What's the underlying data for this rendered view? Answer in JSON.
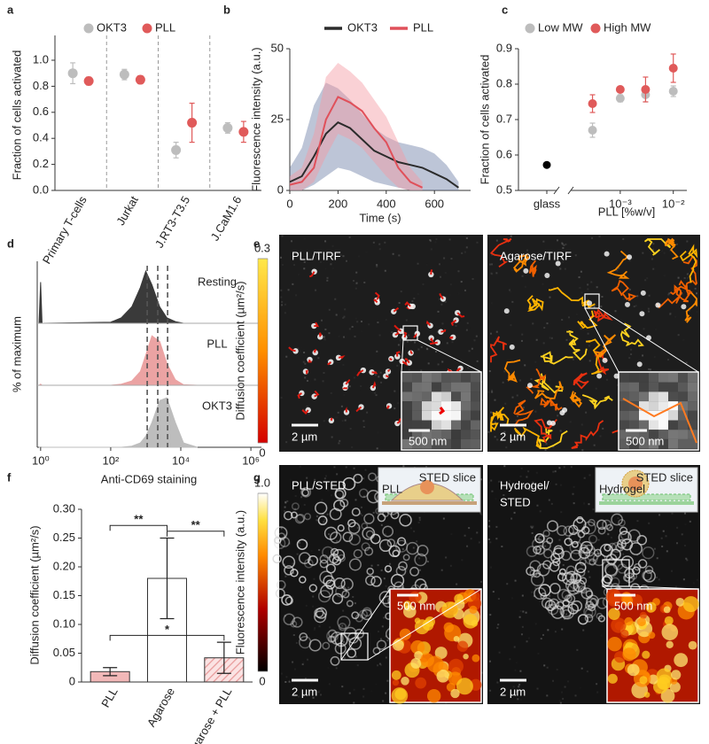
{
  "chart_data": [
    {
      "panel": "a",
      "type": "dot",
      "ylabel": "Fraction of cells activated",
      "categories": [
        "Primary T-cells",
        "Jurkat",
        "J.RT3-T3.5",
        "J.CaM1.6"
      ],
      "series": [
        {
          "name": "OKT3",
          "color": "#bdbdbd",
          "values": [
            0.9,
            0.89,
            0.31,
            0.48
          ],
          "errors": [
            0.08,
            0.04,
            0.06,
            0.04
          ]
        },
        {
          "name": "PLL",
          "color": "#e05a5a",
          "values": [
            0.84,
            0.85,
            0.52,
            0.45
          ],
          "errors": [
            0.03,
            0.03,
            0.15,
            0.08
          ]
        }
      ],
      "ylim": [
        0,
        1.0
      ],
      "yticks": [
        {
          "value": 0,
          "label": "0.0"
        },
        0.2,
        0.4,
        0.6,
        0.8,
        {
          "value": 1,
          "label": "1.0"
        }
      ]
    },
    {
      "panel": "b",
      "type": "line",
      "xlabel": "Time (s)",
      "ylabel": "Fluorescence intensity (a.u.)",
      "x": [
        0,
        50,
        100,
        150,
        200,
        250,
        300,
        350,
        400,
        450,
        500,
        550,
        600,
        650,
        700
      ],
      "series": [
        {
          "name": "OKT3",
          "color": "#2b2b2b",
          "band_color": "#6d7fa6",
          "values": [
            3,
            5,
            12,
            20,
            24,
            22,
            18,
            14,
            12,
            10,
            9,
            8,
            6,
            4,
            1
          ],
          "lower": [
            0,
            0,
            2,
            5,
            8,
            7,
            5,
            3,
            2,
            1,
            0,
            0,
            0,
            0,
            0
          ],
          "upper": [
            8,
            15,
            30,
            38,
            36,
            32,
            27,
            22,
            19,
            17,
            16,
            15,
            13,
            9,
            3
          ]
        },
        {
          "name": "PLL",
          "color": "#e0505a",
          "band_color": "#f39aa2",
          "values": [
            2,
            3,
            8,
            25,
            33,
            31,
            28,
            22,
            17,
            8,
            3,
            1,
            null,
            null,
            null
          ],
          "lower": [
            0,
            0,
            3,
            12,
            20,
            18,
            15,
            10,
            5,
            1,
            0,
            0,
            null,
            null,
            null
          ],
          "upper": [
            5,
            8,
            20,
            40,
            45,
            42,
            38,
            32,
            26,
            17,
            8,
            3,
            null,
            null,
            null
          ]
        }
      ],
      "xlim": [
        0,
        750
      ],
      "xticks": [
        0,
        200,
        400,
        600
      ],
      "ylim": [
        0,
        50
      ],
      "yticks": [
        0,
        25,
        50
      ]
    },
    {
      "panel": "c",
      "type": "scatter",
      "log_x": true,
      "xlabel": "PLL [%w/v]",
      "ylabel": "Fraction of cells activated",
      "x": [
        0.0003,
        0.001,
        0.003,
        0.01
      ],
      "series": [
        {
          "name": "Low MW",
          "color": "#bdbdbd",
          "values": [
            0.67,
            0.76,
            0.77,
            0.78
          ],
          "errors": [
            0.02,
            0.01,
            0.02,
            0.015
          ]
        },
        {
          "name": "High MW",
          "color": "#e05a5a",
          "values": [
            0.745,
            0.785,
            0.785,
            0.845
          ],
          "errors": [
            0.025,
            0.005,
            0.035,
            0.04
          ]
        }
      ],
      "reference": {
        "label": "glass",
        "value": 0.572,
        "color": "#000000"
      },
      "xlim": [
        0.0001,
        0.018
      ],
      "xticks": [
        {
          "value": 0.001,
          "label": "10⁻³"
        },
        {
          "value": 0.01,
          "label": "10⁻²"
        }
      ],
      "ylim": [
        0.5,
        0.9
      ],
      "yticks": [
        0.5,
        0.6,
        0.7,
        0.8,
        0.9
      ]
    },
    {
      "panel": "d",
      "type": "density",
      "log_x": true,
      "xlabel": "Anti-CD69 staining",
      "ylabel": "% of maximum",
      "x": [
        0.9,
        1,
        1.1,
        100,
        200,
        400,
        700,
        1000,
        1500,
        2500,
        4000,
        7000,
        12000,
        30000
      ],
      "series": [
        {
          "name": "Resting",
          "color": "#3a3a3a",
          "values": [
            0,
            75,
            0,
            2,
            10,
            30,
            65,
            95,
            70,
            30,
            10,
            3,
            0,
            0
          ]
        },
        {
          "name": "PLL",
          "color": "#eba3a3",
          "values": [
            0,
            2,
            0,
            0,
            2,
            8,
            25,
            55,
            90,
            80,
            40,
            10,
            1,
            0
          ]
        },
        {
          "name": "OKT3",
          "color": "#bdbdbd",
          "values": [
            0,
            1,
            0,
            0,
            0,
            2,
            8,
            20,
            45,
            85,
            90,
            45,
            8,
            0
          ]
        }
      ],
      "markers": [
        1100,
        2200,
        4200
      ],
      "xlim": [
        0.8,
        2000000
      ],
      "xticks": [
        {
          "value": 1,
          "label": "10⁰"
        },
        {
          "value": 100,
          "label": "10²"
        },
        {
          "value": 10000,
          "label": "10⁴"
        },
        {
          "value": 1000000,
          "label": "10⁶"
        }
      ],
      "ylim": [
        0,
        100
      ]
    },
    {
      "panel": "f",
      "type": "bar",
      "ylabel": "Diffusion coefficient (µm²/s)",
      "categories": [
        "PLL",
        "Agarose",
        "Agarose + PLL"
      ],
      "values": [
        0.018,
        0.18,
        0.042
      ],
      "errors": [
        0.007,
        0.07,
        0.027
      ],
      "colors": [
        "#f2b8b8",
        "#ffffff",
        "#f2b8b8"
      ],
      "hatch": [
        false,
        false,
        true
      ],
      "significance": [
        {
          "pair": [
            0,
            1
          ],
          "label": "**"
        },
        {
          "pair": [
            1,
            2
          ],
          "label": "**"
        },
        {
          "pair": [
            0,
            2
          ],
          "label": "*"
        }
      ],
      "ylim": [
        0,
        0.3
      ],
      "yticks": [
        0,
        0.05,
        {
          "value": 0.1,
          "label": "0.10"
        },
        0.15,
        {
          "value": 0.2,
          "label": "0.20"
        },
        0.25,
        {
          "value": 0.3,
          "label": "0.30"
        }
      ]
    }
  ],
  "images": {
    "e": {
      "panel": "e",
      "colorbar": {
        "title": "Diffusion coefficient (µm²/s)",
        "lim": [
          0,
          0.3
        ],
        "ticks": [
          0,
          0.3
        ]
      },
      "frames": [
        {
          "title": "PLL/TIRF",
          "scale_bar": "2 µm",
          "inset_scale_bar": "500 nm"
        },
        {
          "title": "Agarose/TIRF",
          "scale_bar": "2 µm",
          "inset_scale_bar": "500 nm"
        }
      ]
    },
    "g": {
      "panel": "g",
      "colorbar": {
        "title": "Fluorescence intensity (a.u.)",
        "lim": [
          0,
          1
        ],
        "ticks": [
          0,
          {
            "value": 1,
            "label": "1.0"
          }
        ]
      },
      "frames": [
        {
          "title": [
            "PLL/STED"
          ],
          "scale_bar": "2 µm",
          "inset_scale_bar": "500 nm",
          "schematic": [
            "PLL",
            "STED slice"
          ]
        },
        {
          "title": [
            "Hydrogel/",
            "STED"
          ],
          "scale_bar": "2 µm",
          "inset_scale_bar": "500 nm",
          "schematic": [
            "Hydrogel",
            "STED slice"
          ]
        }
      ]
    }
  }
}
